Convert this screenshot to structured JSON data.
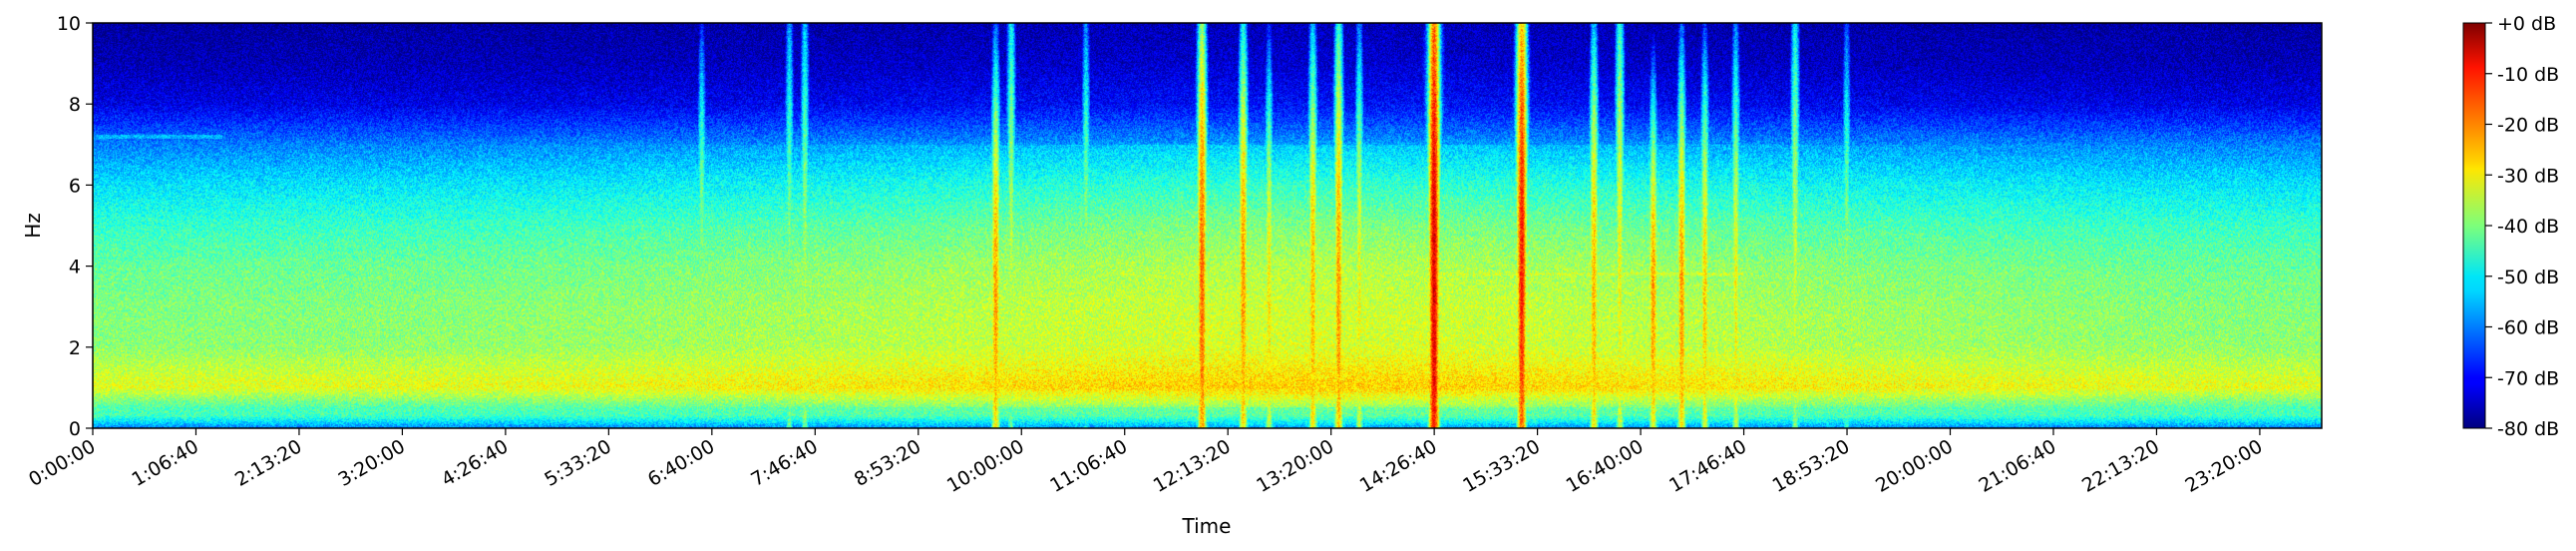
{
  "chart_data": {
    "type": "heatmap",
    "xlabel": "Time",
    "ylabel": "Hz",
    "ylim": [
      0,
      10
    ],
    "yticks": [
      0,
      2,
      4,
      6,
      8,
      10
    ],
    "xlim_seconds": [
      0,
      86400
    ],
    "x_tick_seconds": [
      0,
      4000,
      8000,
      12000,
      16000,
      20000,
      24000,
      28000,
      32000,
      36000,
      40000,
      44000,
      48000,
      52000,
      56000,
      60000,
      64000,
      68000,
      72000,
      76000,
      80000,
      84000
    ],
    "x_tick_labels": [
      "0:00:00",
      "1:06:40",
      "2:13:20",
      "3:20:00",
      "4:26:40",
      "5:33:20",
      "6:40:00",
      "7:46:40",
      "8:53:20",
      "10:00:00",
      "11:06:40",
      "12:13:20",
      "13:20:00",
      "14:26:40",
      "15:33:20",
      "16:40:00",
      "17:46:40",
      "18:53:20",
      "20:00:00",
      "21:06:40",
      "22:13:20",
      "23:20:00"
    ],
    "colorbar": {
      "colormap": "jet",
      "range_db": [
        -80,
        0
      ],
      "ticks": [
        0,
        -10,
        -20,
        -30,
        -40,
        -50,
        -60,
        -70,
        -80
      ],
      "tick_labels": [
        "+0 dB",
        "-10 dB",
        "-20 dB",
        "-30 dB",
        "-40 dB",
        "-50 dB",
        "-60 dB",
        "-70 dB",
        "-80 dB"
      ]
    },
    "background_profile": {
      "hz": [
        0,
        0.15,
        0.3,
        0.5,
        1.0,
        1.3,
        2.0,
        3.0,
        4.0,
        5.0,
        6.0,
        7.0,
        8.0,
        9.0,
        10.0
      ],
      "db": [
        -60,
        -52,
        -45,
        -44,
        -32,
        -34,
        -39,
        -40,
        -42,
        -46,
        -52,
        -60,
        -72,
        -76,
        -78
      ]
    },
    "events": [
      {
        "t": 23600,
        "hz": 5.0,
        "spread": 3.0,
        "db": -40
      },
      {
        "t": 27000,
        "hz": 3.0,
        "spread": 5.0,
        "db": -38
      },
      {
        "t": 27600,
        "hz": 3.0,
        "spread": 5.0,
        "db": -36
      },
      {
        "t": 35000,
        "hz": 3.0,
        "spread": 3.5,
        "db": -22
      },
      {
        "t": 35600,
        "hz": 4.0,
        "spread": 5.0,
        "db": -36
      },
      {
        "t": 38500,
        "hz": 4.0,
        "spread": 4.0,
        "db": -38
      },
      {
        "t": 43000,
        "hz": 3.5,
        "spread": 4.5,
        "db": -18
      },
      {
        "t": 44600,
        "hz": 3.3,
        "spread": 4.0,
        "db": -22
      },
      {
        "t": 45600,
        "hz": 3.0,
        "spread": 3.5,
        "db": -28
      },
      {
        "t": 47300,
        "hz": 3.0,
        "spread": 4.0,
        "db": -24
      },
      {
        "t": 48300,
        "hz": 3.0,
        "spread": 4.5,
        "db": -22
      },
      {
        "t": 49100,
        "hz": 3.0,
        "spread": 4.0,
        "db": -30
      },
      {
        "t": 52000,
        "hz": 3.8,
        "spread": 6.0,
        "db": -8
      },
      {
        "t": 55400,
        "hz": 4.2,
        "spread": 5.0,
        "db": -12
      },
      {
        "t": 58200,
        "hz": 3.0,
        "spread": 4.0,
        "db": -24
      },
      {
        "t": 59200,
        "hz": 3.5,
        "spread": 5.0,
        "db": -30
      },
      {
        "t": 60500,
        "hz": 3.0,
        "spread": 3.0,
        "db": -22
      },
      {
        "t": 61600,
        "hz": 3.0,
        "spread": 3.5,
        "db": -22
      },
      {
        "t": 62500,
        "hz": 3.0,
        "spread": 3.5,
        "db": -26
      },
      {
        "t": 63700,
        "hz": 3.0,
        "spread": 4.0,
        "db": -30
      },
      {
        "t": 66000,
        "hz": 3.5,
        "spread": 5.0,
        "db": -34
      },
      {
        "t": 68000,
        "hz": 3.5,
        "spread": 4.0,
        "db": -38
      }
    ],
    "tonal_lines": [
      {
        "hz": 3.8,
        "t_start": 52000,
        "t_end": 64000,
        "db": -34
      },
      {
        "hz": 3.55,
        "t_start": 64000,
        "t_end": 86400,
        "db": -40
      },
      {
        "hz": 5.5,
        "t_start": 5000,
        "t_end": 11000,
        "db": -48
      },
      {
        "hz": 7.2,
        "t_start": 0,
        "t_end": 5000,
        "db": -56
      }
    ]
  }
}
